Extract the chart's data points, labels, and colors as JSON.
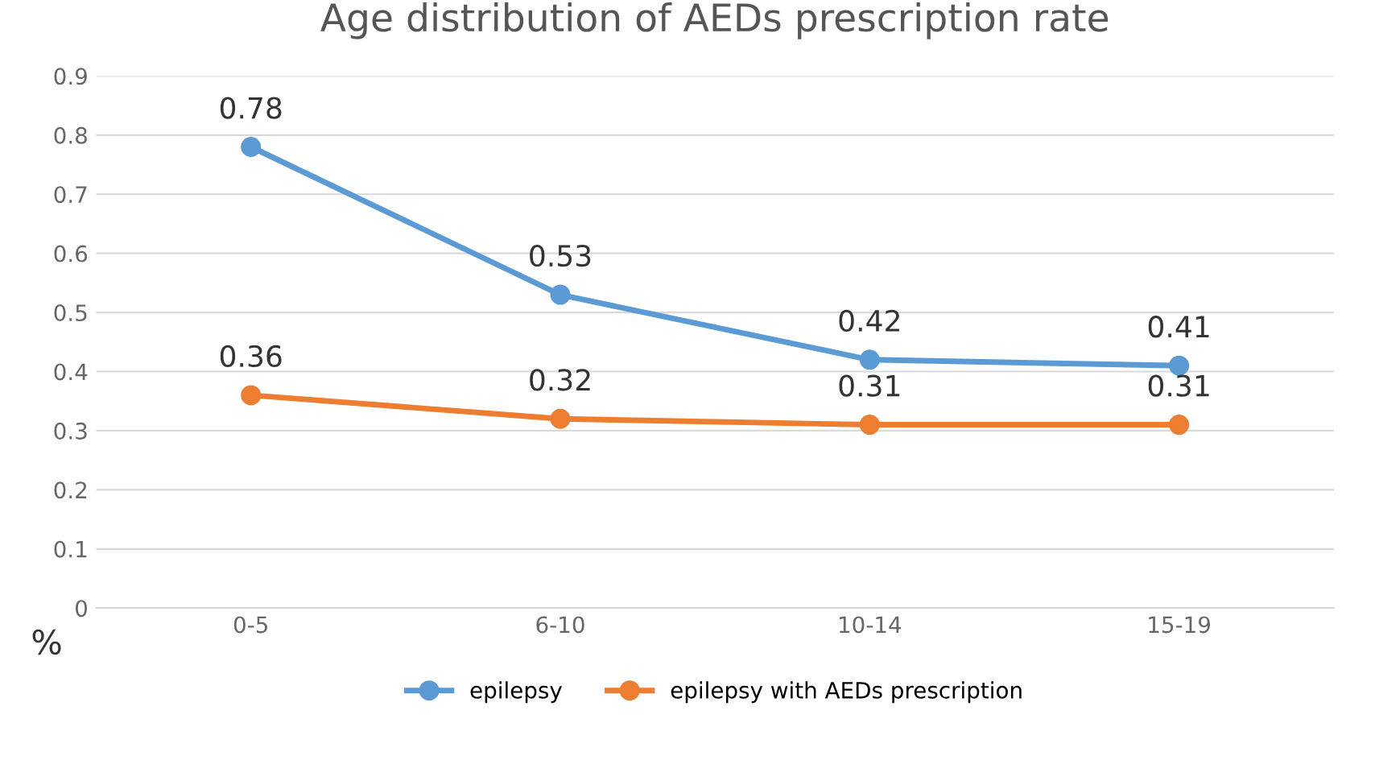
{
  "chart_data": {
    "type": "line",
    "title": "Age distribution of AEDs prescription rate",
    "ylabel": "%",
    "categories": [
      "0-5",
      "6-10",
      "10-14",
      "15-19"
    ],
    "series": [
      {
        "name": "epilepsy",
        "color": "#5b9bd5",
        "values": [
          0.78,
          0.53,
          0.42,
          0.41
        ]
      },
      {
        "name": "epilepsy with AEDs prescription",
        "color": "#ed7d31",
        "values": [
          0.36,
          0.32,
          0.31,
          0.31
        ]
      }
    ],
    "ylim": [
      0,
      0.9
    ],
    "yticks": [
      0,
      0.1,
      0.2,
      0.3,
      0.4,
      0.5,
      0.6,
      0.7,
      0.8,
      0.9
    ],
    "grid": "y",
    "legend": "bottom",
    "marker": "circle",
    "line_style": "solid",
    "data_labels": true
  }
}
